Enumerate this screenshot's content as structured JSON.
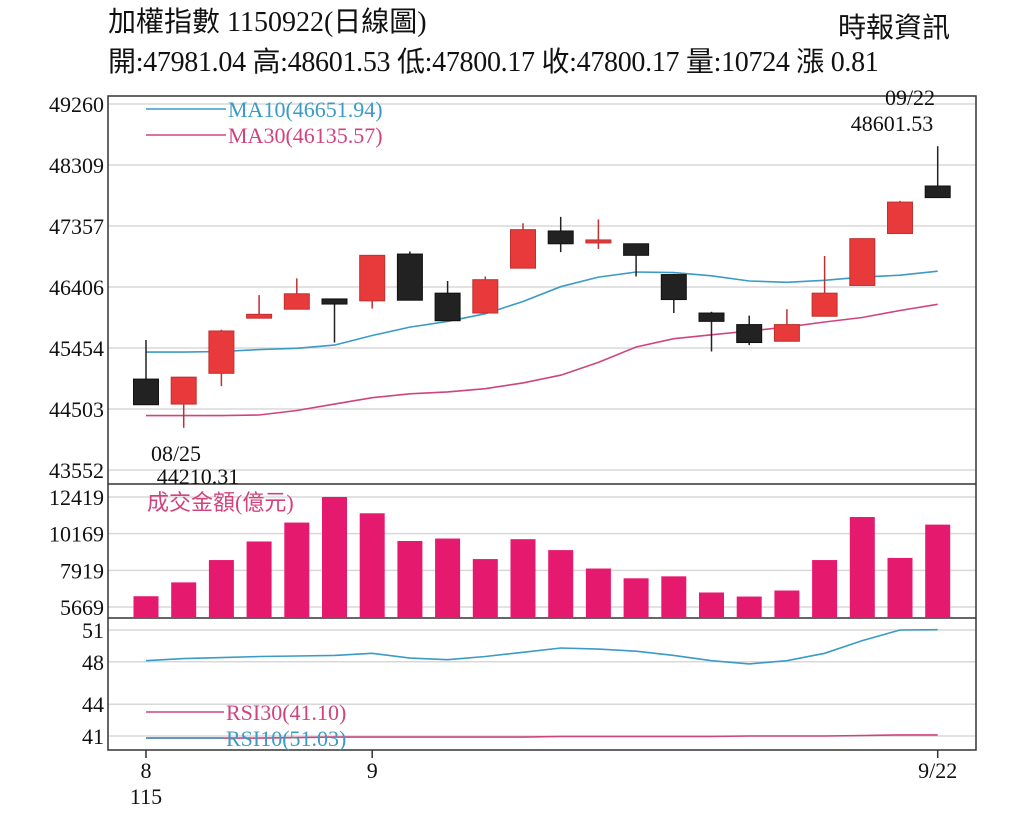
{
  "header": {
    "title": "加權指數 1150922(日線圖)",
    "source": "時報資訊",
    "quote": "開:47981.04 高:48601.53 低:47800.17 收:47800.17 量:10724 漲 0.81"
  },
  "chart_data": [
    {
      "type": "candlestick",
      "panel": "price",
      "y_ticks": [
        "49260",
        "48309",
        "47357",
        "46406",
        "45454",
        "44503",
        "43552"
      ],
      "ylim": [
        43552,
        49260
      ],
      "grid": true,
      "candles": [
        {
          "open": 44970,
          "close": 44570,
          "high": 45580,
          "low": 44570
        },
        {
          "open": 44580,
          "close": 45000,
          "high": 45000,
          "low": 44210.31
        },
        {
          "open": 45060,
          "close": 45720,
          "high": 45740,
          "low": 44860
        },
        {
          "open": 45920,
          "close": 45980,
          "high": 46280,
          "low": 45920
        },
        {
          "open": 46060,
          "close": 46300,
          "high": 46540,
          "low": 46060
        },
        {
          "open": 46220,
          "close": 46140,
          "high": 46220,
          "low": 45540
        },
        {
          "open": 46190,
          "close": 46900,
          "high": 46900,
          "low": 46070
        },
        {
          "open": 46920,
          "close": 46200,
          "high": 46960,
          "low": 46200
        },
        {
          "open": 46310,
          "close": 45880,
          "high": 46500,
          "low": 45880
        },
        {
          "open": 46000,
          "close": 46520,
          "high": 46570,
          "low": 46000
        },
        {
          "open": 46700,
          "close": 47300,
          "high": 47400,
          "low": 46700
        },
        {
          "open": 47280,
          "close": 47080,
          "high": 47500,
          "low": 46950
        },
        {
          "open": 47100,
          "close": 47140,
          "high": 47460,
          "low": 47000
        },
        {
          "open": 47080,
          "close": 46900,
          "high": 47080,
          "low": 46570
        },
        {
          "open": 46600,
          "close": 46210,
          "high": 46610,
          "low": 46000
        },
        {
          "open": 46000,
          "close": 45870,
          "high": 46020,
          "low": 45400
        },
        {
          "open": 45820,
          "close": 45540,
          "high": 45960,
          "low": 45500
        },
        {
          "open": 45560,
          "close": 45820,
          "high": 46060,
          "low": 45560
        },
        {
          "open": 45950,
          "close": 46310,
          "high": 46890,
          "low": 45950
        },
        {
          "open": 46430,
          "close": 47160,
          "high": 47160,
          "low": 46430
        },
        {
          "open": 47240,
          "close": 47730,
          "high": 47750,
          "low": 47240
        },
        {
          "open": 47981.04,
          "close": 47800.17,
          "high": 48601.53,
          "low": 47800.17
        }
      ],
      "ma10": [
        45390,
        45390,
        45400,
        45430,
        45450,
        45500,
        45650,
        45780,
        45870,
        45990,
        46180,
        46410,
        46560,
        46640,
        46630,
        46580,
        46500,
        46480,
        46510,
        46560,
        46590,
        46651.94
      ],
      "ma30": [
        44400,
        44400,
        44400,
        44410,
        44480,
        44580,
        44680,
        44740,
        44770,
        44820,
        44910,
        45030,
        45230,
        45470,
        45600,
        45660,
        45720,
        45780,
        45860,
        45930,
        46040,
        46135.57
      ],
      "legend": [
        {
          "label": "MA10(46651.94)",
          "color": "#3a9bc6"
        },
        {
          "label": "MA30(46135.57)",
          "color": "#d0447e"
        }
      ],
      "annotations": {
        "low": {
          "date": "08/25",
          "value": "44210.31"
        },
        "high": {
          "date": "09/22",
          "value": "48601.53"
        }
      }
    },
    {
      "type": "bar",
      "panel": "volume",
      "label": "成交金額(億元)",
      "y_ticks": [
        "12419",
        "10169",
        "7919",
        "5669"
      ],
      "ylim": [
        5669,
        12419
      ],
      "color": "#e5196e",
      "values": [
        6330,
        7180,
        8550,
        9690,
        10850,
        12419,
        11420,
        9720,
        9870,
        8610,
        9830,
        9160,
        8030,
        7430,
        7550,
        6560,
        6310,
        6680,
        8550,
        11190,
        8680,
        10724
      ]
    },
    {
      "type": "line",
      "panel": "rsi",
      "y_ticks": [
        "51",
        "48",
        "44",
        "41"
      ],
      "ylim": [
        40.8,
        51.2
      ],
      "series": [
        {
          "name": "RSI10(51.03)",
          "color": "#3a9bc6",
          "values": [
            48.1,
            48.3,
            48.4,
            48.5,
            48.55,
            48.6,
            48.8,
            48.35,
            48.2,
            48.5,
            48.9,
            49.3,
            49.2,
            49.0,
            48.6,
            48.1,
            47.8,
            48.1,
            48.8,
            50.0,
            51.0,
            51.03
          ]
        },
        {
          "name": "RSI30(41.10)",
          "color": "#d0447e",
          "values": [
            40.8,
            40.8,
            40.8,
            40.8,
            40.85,
            40.9,
            40.9,
            40.9,
            40.9,
            40.9,
            40.9,
            40.95,
            40.95,
            40.95,
            40.95,
            40.95,
            41.0,
            41.0,
            41.0,
            41.05,
            41.1,
            41.1
          ]
        }
      ],
      "series_labels": [
        "RSI30(41.10)",
        "RSI10(51.03)"
      ]
    }
  ],
  "x_axis": {
    "ticks": [
      {
        "index": 0,
        "label": "8"
      },
      {
        "index": 6,
        "label": "9"
      },
      {
        "index": 21,
        "label": "9/22"
      }
    ],
    "year": "115"
  },
  "colors": {
    "up": "#e83a3a",
    "down": "#222222",
    "grid": "#d8d8d8",
    "frame": "#333333",
    "volume_label": "#d0447e"
  }
}
